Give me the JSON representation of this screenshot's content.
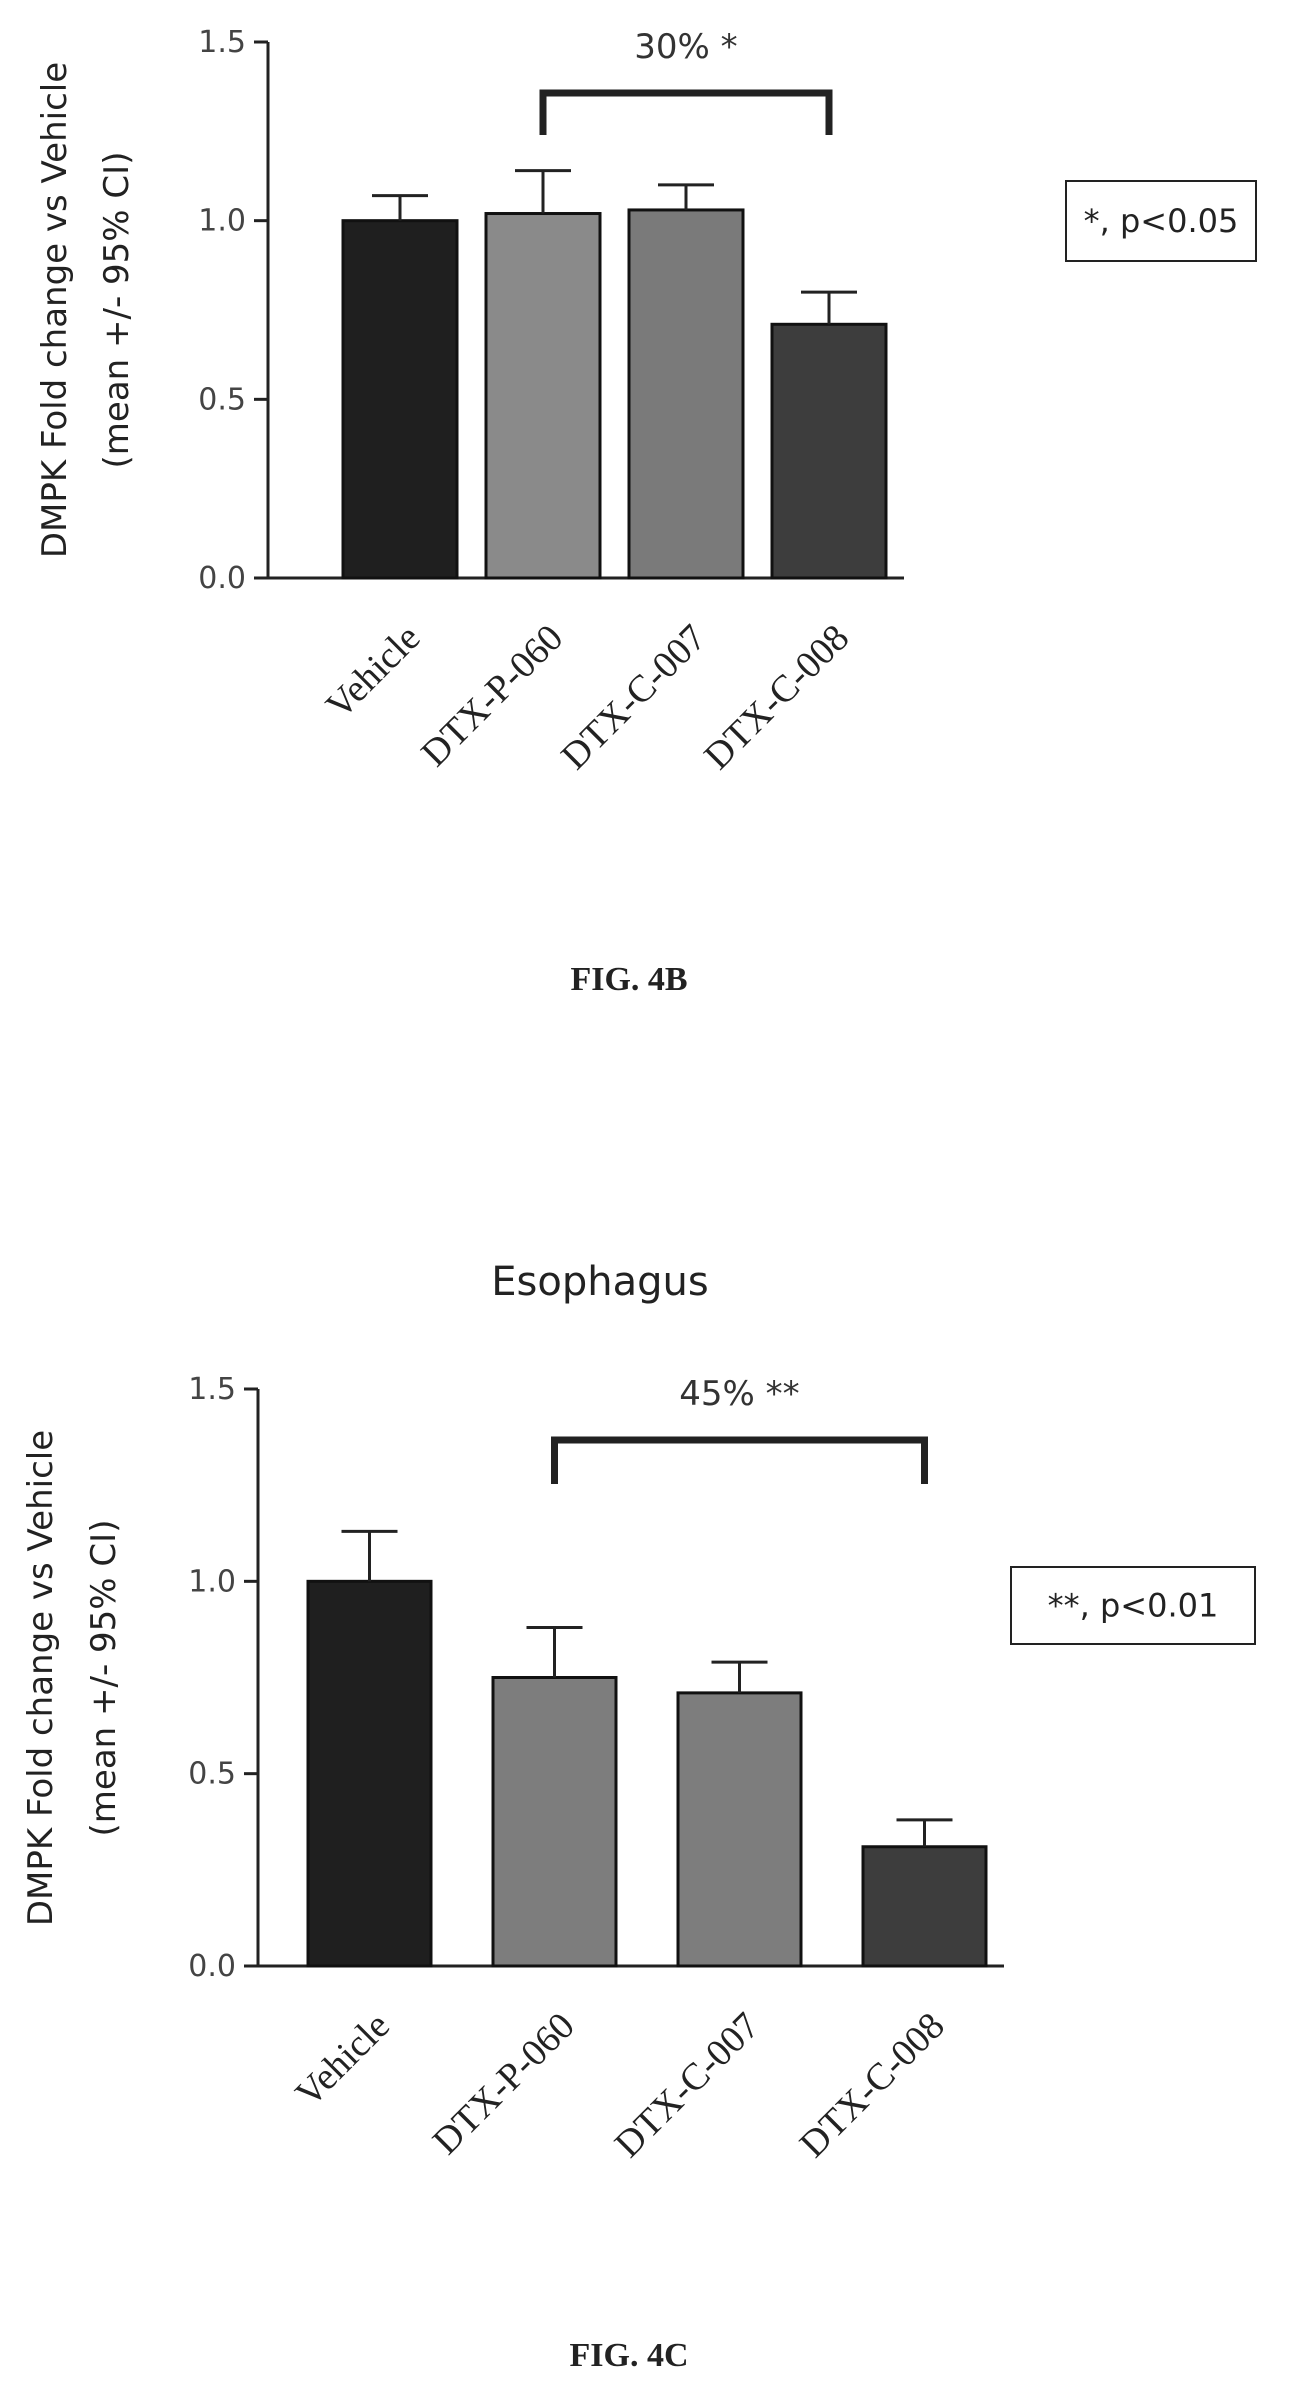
{
  "charts": [
    {
      "caption": "FIG. 4B",
      "significance_note": "*, p<0.05",
      "bracket_label": "30% *"
    },
    {
      "caption": "FIG. 4C",
      "significance_note": "**, p<0.01",
      "bracket_label": "45% **"
    }
  ],
  "chart_data": [
    {
      "type": "bar",
      "title": "",
      "ylabel": "DMPK Fold change vs Vehicle (mean +/- 95% CI)",
      "ylabel_lines": [
        "DMPK Fold change vs Vehicle",
        "(mean +/- 95% CI)"
      ],
      "xlabel": "",
      "categories": [
        "Vehicle",
        "DTX-P-060",
        "DTX-C-007",
        "DTX-C-008"
      ],
      "values": [
        1.0,
        1.02,
        1.03,
        0.71
      ],
      "error_upper": [
        1.07,
        1.14,
        1.1,
        0.8
      ],
      "bar_colors": [
        "#1f1f1f",
        "#8a8a8a",
        "#7a7a7a",
        "#3d3d3d"
      ],
      "ylim": [
        0,
        1.5
      ],
      "yticks": [
        "0.0",
        "0.5",
        "1.0",
        "1.5"
      ],
      "bracket": {
        "from": "DTX-P-060",
        "to": "DTX-C-008",
        "label": "30% *"
      },
      "grid": false
    },
    {
      "type": "bar",
      "title": "Esophagus",
      "ylabel": "DMPK Fold change vs Vehicle (mean +/- 95% CI)",
      "ylabel_lines": [
        "DMPK Fold change vs Vehicle",
        "(mean +/- 95% CI)"
      ],
      "xlabel": "",
      "categories": [
        "Vehicle",
        "DTX-P-060",
        "DTX-C-007",
        "DTX-C-008"
      ],
      "values": [
        1.0,
        0.75,
        0.71,
        0.31
      ],
      "error_upper": [
        1.13,
        0.88,
        0.79,
        0.38
      ],
      "bar_colors": [
        "#1f1f1f",
        "#7d7d7d",
        "#7d7d7d",
        "#3d3d3d"
      ],
      "ylim": [
        0,
        1.5
      ],
      "yticks": [
        "0.0",
        "0.5",
        "1.0",
        "1.5"
      ],
      "bracket": {
        "from": "DTX-P-060",
        "to": "DTX-C-008",
        "label": "45% **"
      },
      "grid": false
    }
  ]
}
